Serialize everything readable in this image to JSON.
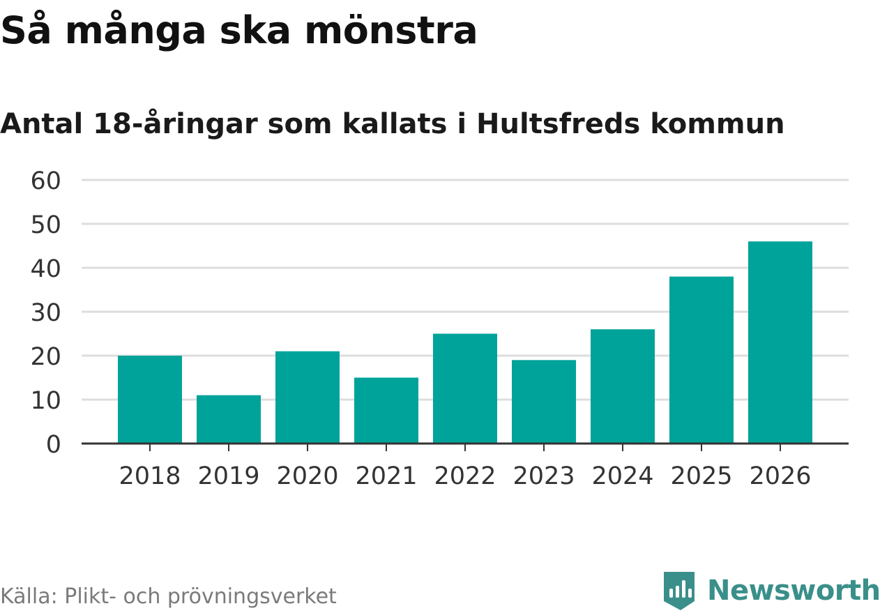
{
  "title": "Så många ska mönstra",
  "subtitle": "Antal 18-åringar som kallats i Hultsfreds kommun",
  "source": "Källa: Plikt- och prövningsverket",
  "brand": {
    "name": "Newsworthy",
    "icon": "newsworthy-logo-icon",
    "color": "#3a8f8a"
  },
  "colors": {
    "bar": "#00a39a",
    "grid": "#dddddd",
    "axis": "#333333"
  },
  "chart_data": {
    "type": "bar",
    "categories": [
      "2018",
      "2019",
      "2020",
      "2021",
      "2022",
      "2023",
      "2024",
      "2025",
      "2026"
    ],
    "values": [
      20,
      11,
      21,
      15,
      25,
      19,
      26,
      38,
      46
    ],
    "yticks": [
      0,
      10,
      20,
      30,
      40,
      50,
      60
    ],
    "ylim": [
      0,
      60
    ],
    "grid": true,
    "legend": "none",
    "xlabel": "",
    "ylabel": ""
  }
}
